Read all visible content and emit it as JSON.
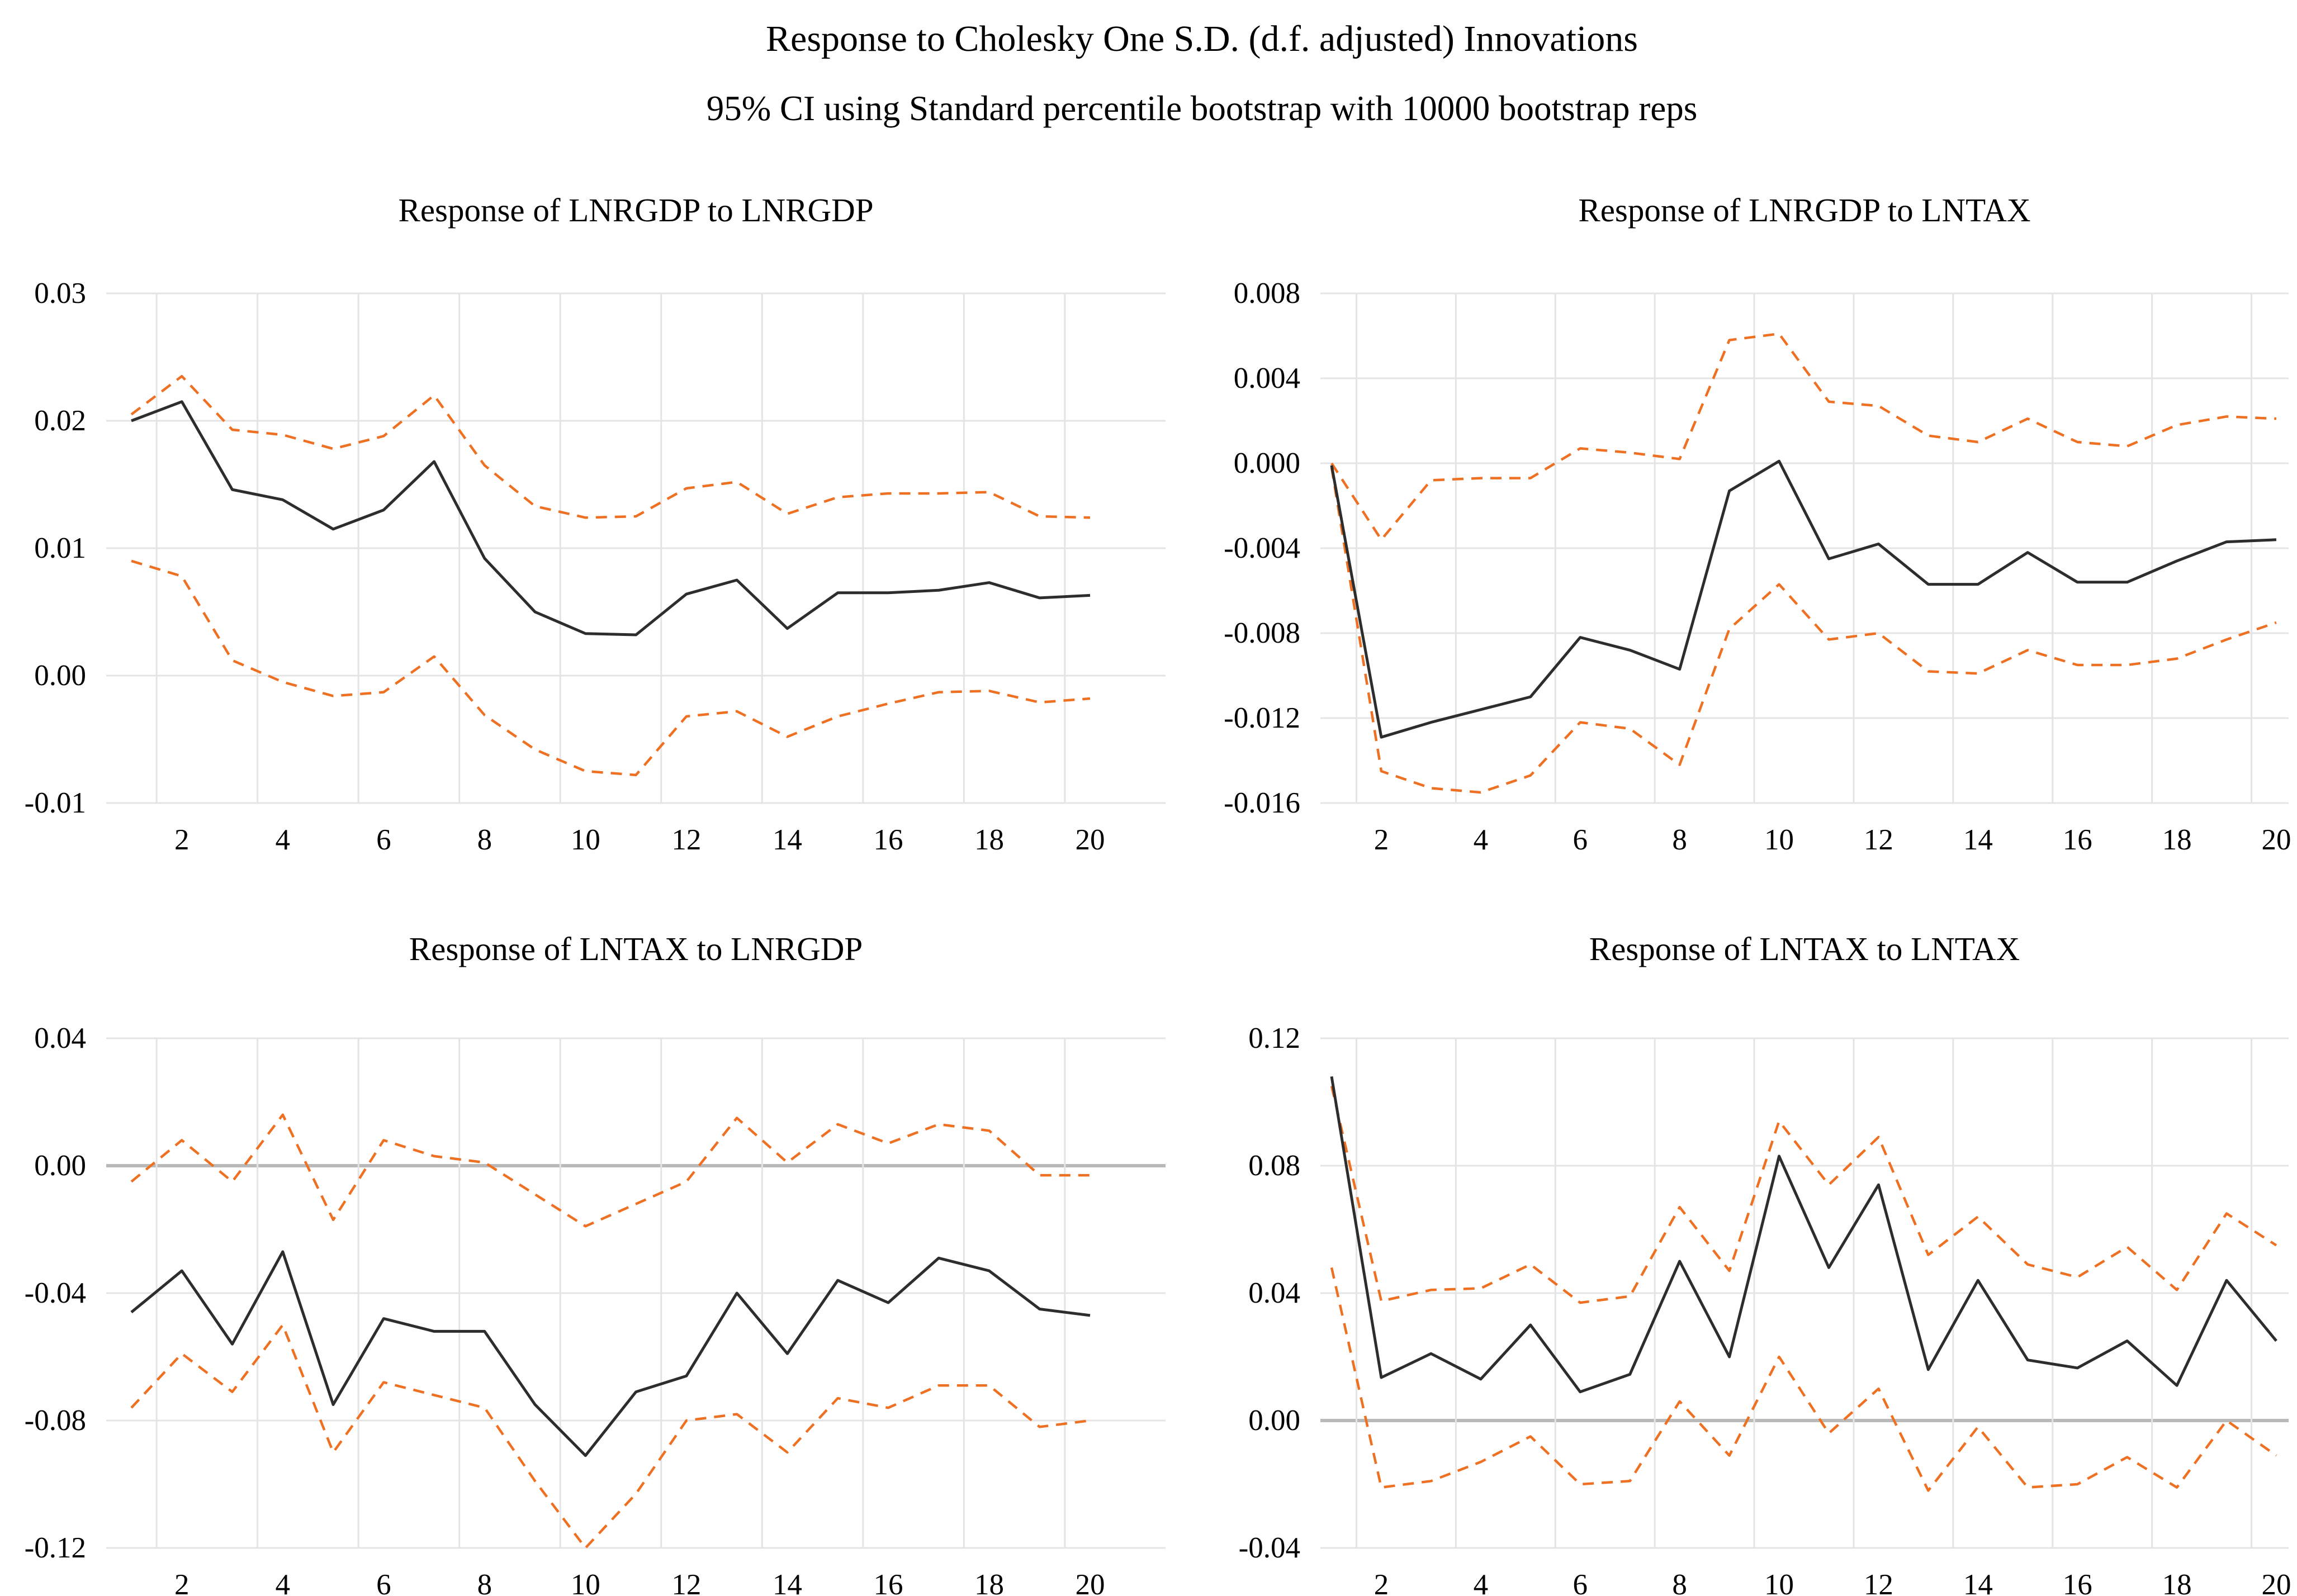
{
  "header": {
    "title": "Response to Cholesky One S.D. (d.f. adjusted) Innovations",
    "subtitle": "95% CI using Standard percentile bootstrap with 10000 bootstrap reps"
  },
  "colors": {
    "response_line": "#2d2d2d",
    "ci_band": "#ee7123",
    "grid": "#e4e4e4",
    "zero_line": "#b9b9b9",
    "text": "#000000",
    "background": "#ffffff"
  },
  "x_tick_labels": [
    "2",
    "4",
    "6",
    "8",
    "10",
    "12",
    "14",
    "16",
    "18",
    "20"
  ],
  "chart_data": [
    {
      "type": "line",
      "title": "Response of LNRGDP to LNRGDP",
      "xlabel": "",
      "ylabel": "",
      "x": [
        1,
        2,
        3,
        4,
        5,
        6,
        7,
        8,
        9,
        10,
        11,
        12,
        13,
        14,
        15,
        16,
        17,
        18,
        19,
        20
      ],
      "ylim": [
        -0.01,
        0.03
      ],
      "yticks": [
        0.03,
        0.02,
        0.01,
        0.0,
        -0.01
      ],
      "ytick_labels": [
        "0.03",
        "0.02",
        "0.01",
        "0.00",
        "-0.01"
      ],
      "grid": true,
      "zero_line": false,
      "legend_position": "none",
      "series": [
        {
          "name": "response",
          "style": "solid",
          "values": [
            0.02,
            0.0215,
            0.0146,
            0.0138,
            0.0115,
            0.013,
            0.0168,
            0.0092,
            0.005,
            0.0033,
            0.0032,
            0.0064,
            0.0075,
            0.0037,
            0.0065,
            0.0065,
            0.0067,
            0.0073,
            0.0061,
            0.0063
          ]
        },
        {
          "name": "upper_95_ci",
          "style": "dashed",
          "values": [
            0.0205,
            0.0235,
            0.0193,
            0.0189,
            0.0178,
            0.0188,
            0.022,
            0.0165,
            0.0133,
            0.0124,
            0.0125,
            0.0147,
            0.0152,
            0.0127,
            0.014,
            0.0143,
            0.0143,
            0.0144,
            0.0125,
            0.0124
          ]
        },
        {
          "name": "lower_95_ci",
          "style": "dashed",
          "values": [
            0.009,
            0.0078,
            0.0012,
            -0.0005,
            -0.0016,
            -0.0013,
            0.0015,
            -0.0031,
            -0.0058,
            -0.0075,
            -0.0078,
            -0.0032,
            -0.0028,
            -0.0048,
            -0.0032,
            -0.0022,
            -0.0013,
            -0.0012,
            -0.0021,
            -0.0018
          ]
        }
      ]
    },
    {
      "type": "line",
      "title": "Response of LNRGDP to LNTAX",
      "xlabel": "",
      "ylabel": "",
      "x": [
        1,
        2,
        3,
        4,
        5,
        6,
        7,
        8,
        9,
        10,
        11,
        12,
        13,
        14,
        15,
        16,
        17,
        18,
        19,
        20
      ],
      "ylim": [
        -0.016,
        0.008
      ],
      "yticks": [
        0.008,
        0.004,
        0.0,
        -0.004,
        -0.008,
        -0.012,
        -0.016
      ],
      "ytick_labels": [
        "0.008",
        "0.004",
        "0.000",
        "-0.004",
        "-0.008",
        "-0.012",
        "-0.016"
      ],
      "grid": true,
      "zero_line": false,
      "legend_position": "none",
      "series": [
        {
          "name": "response",
          "style": "solid",
          "values": [
            -0.0001,
            -0.0129,
            -0.0122,
            -0.0116,
            -0.011,
            -0.0082,
            -0.0088,
            -0.0097,
            -0.0013,
            0.0001,
            -0.0045,
            -0.0038,
            -0.0057,
            -0.0057,
            -0.0042,
            -0.0056,
            -0.0056,
            -0.0046,
            -0.0037,
            -0.0036
          ]
        },
        {
          "name": "upper_95_ci",
          "style": "dashed",
          "values": [
            0.0,
            -0.0036,
            -0.0008,
            -0.0007,
            -0.0007,
            0.0007,
            0.0005,
            0.0002,
            0.0058,
            0.0061,
            0.0029,
            0.0027,
            0.0013,
            0.001,
            0.0021,
            0.001,
            0.0008,
            0.0018,
            0.0022,
            0.0021
          ]
        },
        {
          "name": "lower_95_ci",
          "style": "dashed",
          "values": [
            -0.0002,
            -0.0145,
            -0.0153,
            -0.0155,
            -0.0147,
            -0.0122,
            -0.0125,
            -0.0142,
            -0.0078,
            -0.0057,
            -0.0083,
            -0.008,
            -0.0098,
            -0.0099,
            -0.0088,
            -0.0095,
            -0.0095,
            -0.0092,
            -0.0083,
            -0.0075
          ]
        }
      ]
    },
    {
      "type": "line",
      "title": "Response of LNTAX to LNRGDP",
      "xlabel": "",
      "ylabel": "",
      "x": [
        1,
        2,
        3,
        4,
        5,
        6,
        7,
        8,
        9,
        10,
        11,
        12,
        13,
        14,
        15,
        16,
        17,
        18,
        19,
        20
      ],
      "ylim": [
        -0.12,
        0.04
      ],
      "yticks": [
        0.04,
        0.0,
        -0.04,
        -0.08,
        -0.12
      ],
      "ytick_labels": [
        "0.04",
        "0.00",
        "-0.04",
        "-0.08",
        "-0.12"
      ],
      "grid": true,
      "zero_line": true,
      "legend_position": "none",
      "series": [
        {
          "name": "response",
          "style": "solid",
          "values": [
            -0.046,
            -0.033,
            -0.056,
            -0.027,
            -0.075,
            -0.048,
            -0.052,
            -0.052,
            -0.075,
            -0.091,
            -0.071,
            -0.066,
            -0.04,
            -0.059,
            -0.036,
            -0.043,
            -0.029,
            -0.033,
            -0.045,
            -0.047
          ]
        },
        {
          "name": "upper_95_ci",
          "style": "dashed",
          "values": [
            -0.005,
            0.008,
            -0.005,
            0.016,
            -0.017,
            0.008,
            0.003,
            0.001,
            -0.009,
            -0.019,
            -0.012,
            -0.005,
            0.015,
            0.001,
            0.013,
            0.007,
            0.013,
            0.011,
            -0.003,
            -0.003
          ]
        },
        {
          "name": "lower_95_ci",
          "style": "dashed",
          "values": [
            -0.076,
            -0.059,
            -0.071,
            -0.05,
            -0.09,
            -0.068,
            -0.072,
            -0.076,
            -0.099,
            -0.12,
            -0.103,
            -0.08,
            -0.078,
            -0.09,
            -0.073,
            -0.076,
            -0.069,
            -0.069,
            -0.082,
            -0.08
          ]
        }
      ]
    },
    {
      "type": "line",
      "title": "Response of LNTAX to LNTAX",
      "xlabel": "",
      "ylabel": "",
      "x": [
        1,
        2,
        3,
        4,
        5,
        6,
        7,
        8,
        9,
        10,
        11,
        12,
        13,
        14,
        15,
        16,
        17,
        18,
        19,
        20
      ],
      "ylim": [
        -0.04,
        0.12
      ],
      "yticks": [
        0.12,
        0.08,
        0.04,
        0.0,
        -0.04
      ],
      "ytick_labels": [
        "0.12",
        "0.08",
        "0.04",
        "0.00",
        "-0.04"
      ],
      "grid": true,
      "zero_line": true,
      "legend_position": "none",
      "series": [
        {
          "name": "response",
          "style": "solid",
          "values": [
            0.108,
            0.0135,
            0.021,
            0.013,
            0.03,
            0.009,
            0.0145,
            0.05,
            0.02,
            0.083,
            0.048,
            0.074,
            0.016,
            0.044,
            0.019,
            0.0165,
            0.025,
            0.011,
            0.044,
            0.025
          ]
        },
        {
          "name": "upper_95_ci",
          "style": "dashed",
          "values": [
            0.105,
            0.0375,
            0.041,
            0.0415,
            0.049,
            0.037,
            0.039,
            0.067,
            0.047,
            0.094,
            0.074,
            0.089,
            0.052,
            0.064,
            0.049,
            0.045,
            0.0545,
            0.041,
            0.065,
            0.055
          ]
        },
        {
          "name": "lower_95_ci",
          "style": "dashed",
          "values": [
            0.048,
            -0.021,
            -0.019,
            -0.013,
            -0.005,
            -0.02,
            -0.019,
            0.006,
            -0.011,
            0.02,
            -0.004,
            0.01,
            -0.022,
            -0.002,
            -0.021,
            -0.02,
            -0.0115,
            -0.021,
            0.0,
            -0.011
          ]
        }
      ]
    }
  ]
}
